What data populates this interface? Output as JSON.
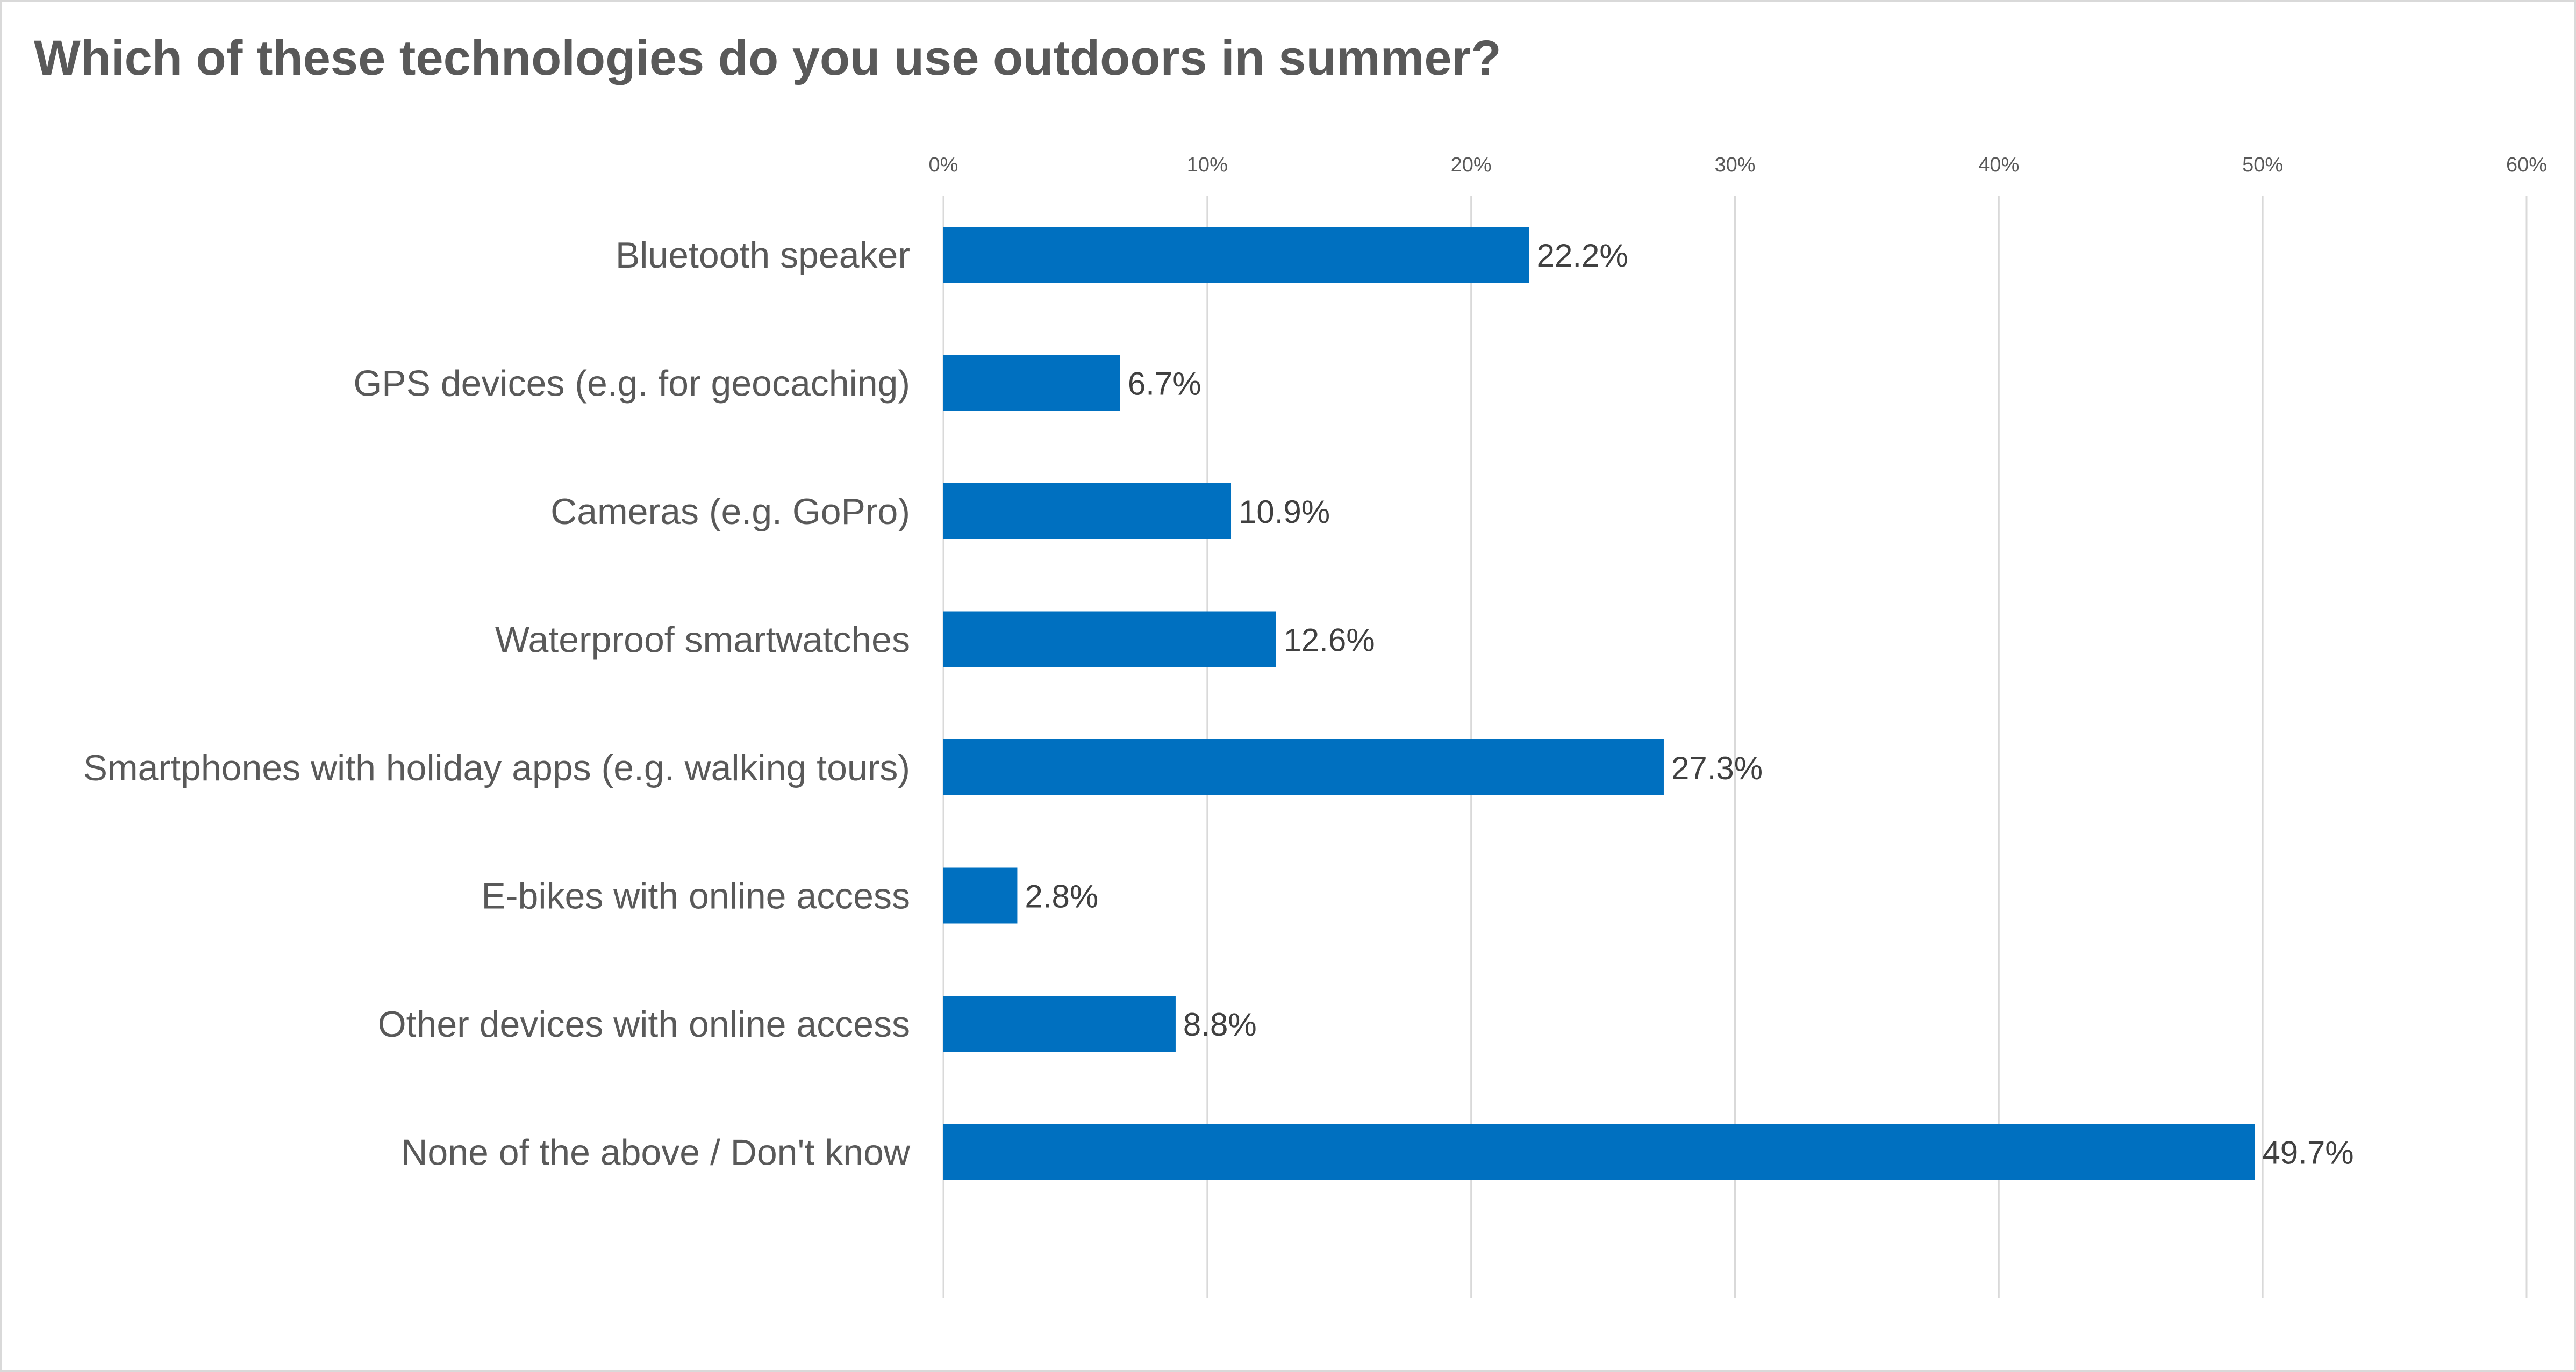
{
  "chart_data": {
    "type": "bar",
    "orientation": "horizontal",
    "title": "Which of these technologies do you use outdoors in summer?",
    "categories": [
      "Bluetooth speaker",
      "GPS devices (e.g. for geocaching)",
      "Cameras (e.g. GoPro)",
      "Waterproof smartwatches",
      "Smartphones with holiday apps (e.g. walking tours)",
      "E-bikes with online access",
      "Other devices with online access",
      "None of the above / Don't know"
    ],
    "values": [
      22.2,
      6.7,
      10.9,
      12.6,
      27.3,
      2.8,
      8.8,
      49.7
    ],
    "data_labels": [
      "22.2%",
      "6.7%",
      "10.9%",
      "12.6%",
      "27.3%",
      "2.8%",
      "8.8%",
      "49.7%"
    ],
    "xlim": [
      0,
      60
    ],
    "x_ticks": [
      0,
      10,
      20,
      30,
      40,
      50,
      60
    ],
    "x_tick_labels": [
      "0%",
      "10%",
      "20%",
      "30%",
      "40%",
      "50%",
      "60%"
    ],
    "x_axis_position": "top",
    "grid": true,
    "legend": "none",
    "colors": {
      "bar": "#0070C0",
      "gridline": "#D9D9D9",
      "text": "#595959",
      "label": "#404040"
    }
  }
}
